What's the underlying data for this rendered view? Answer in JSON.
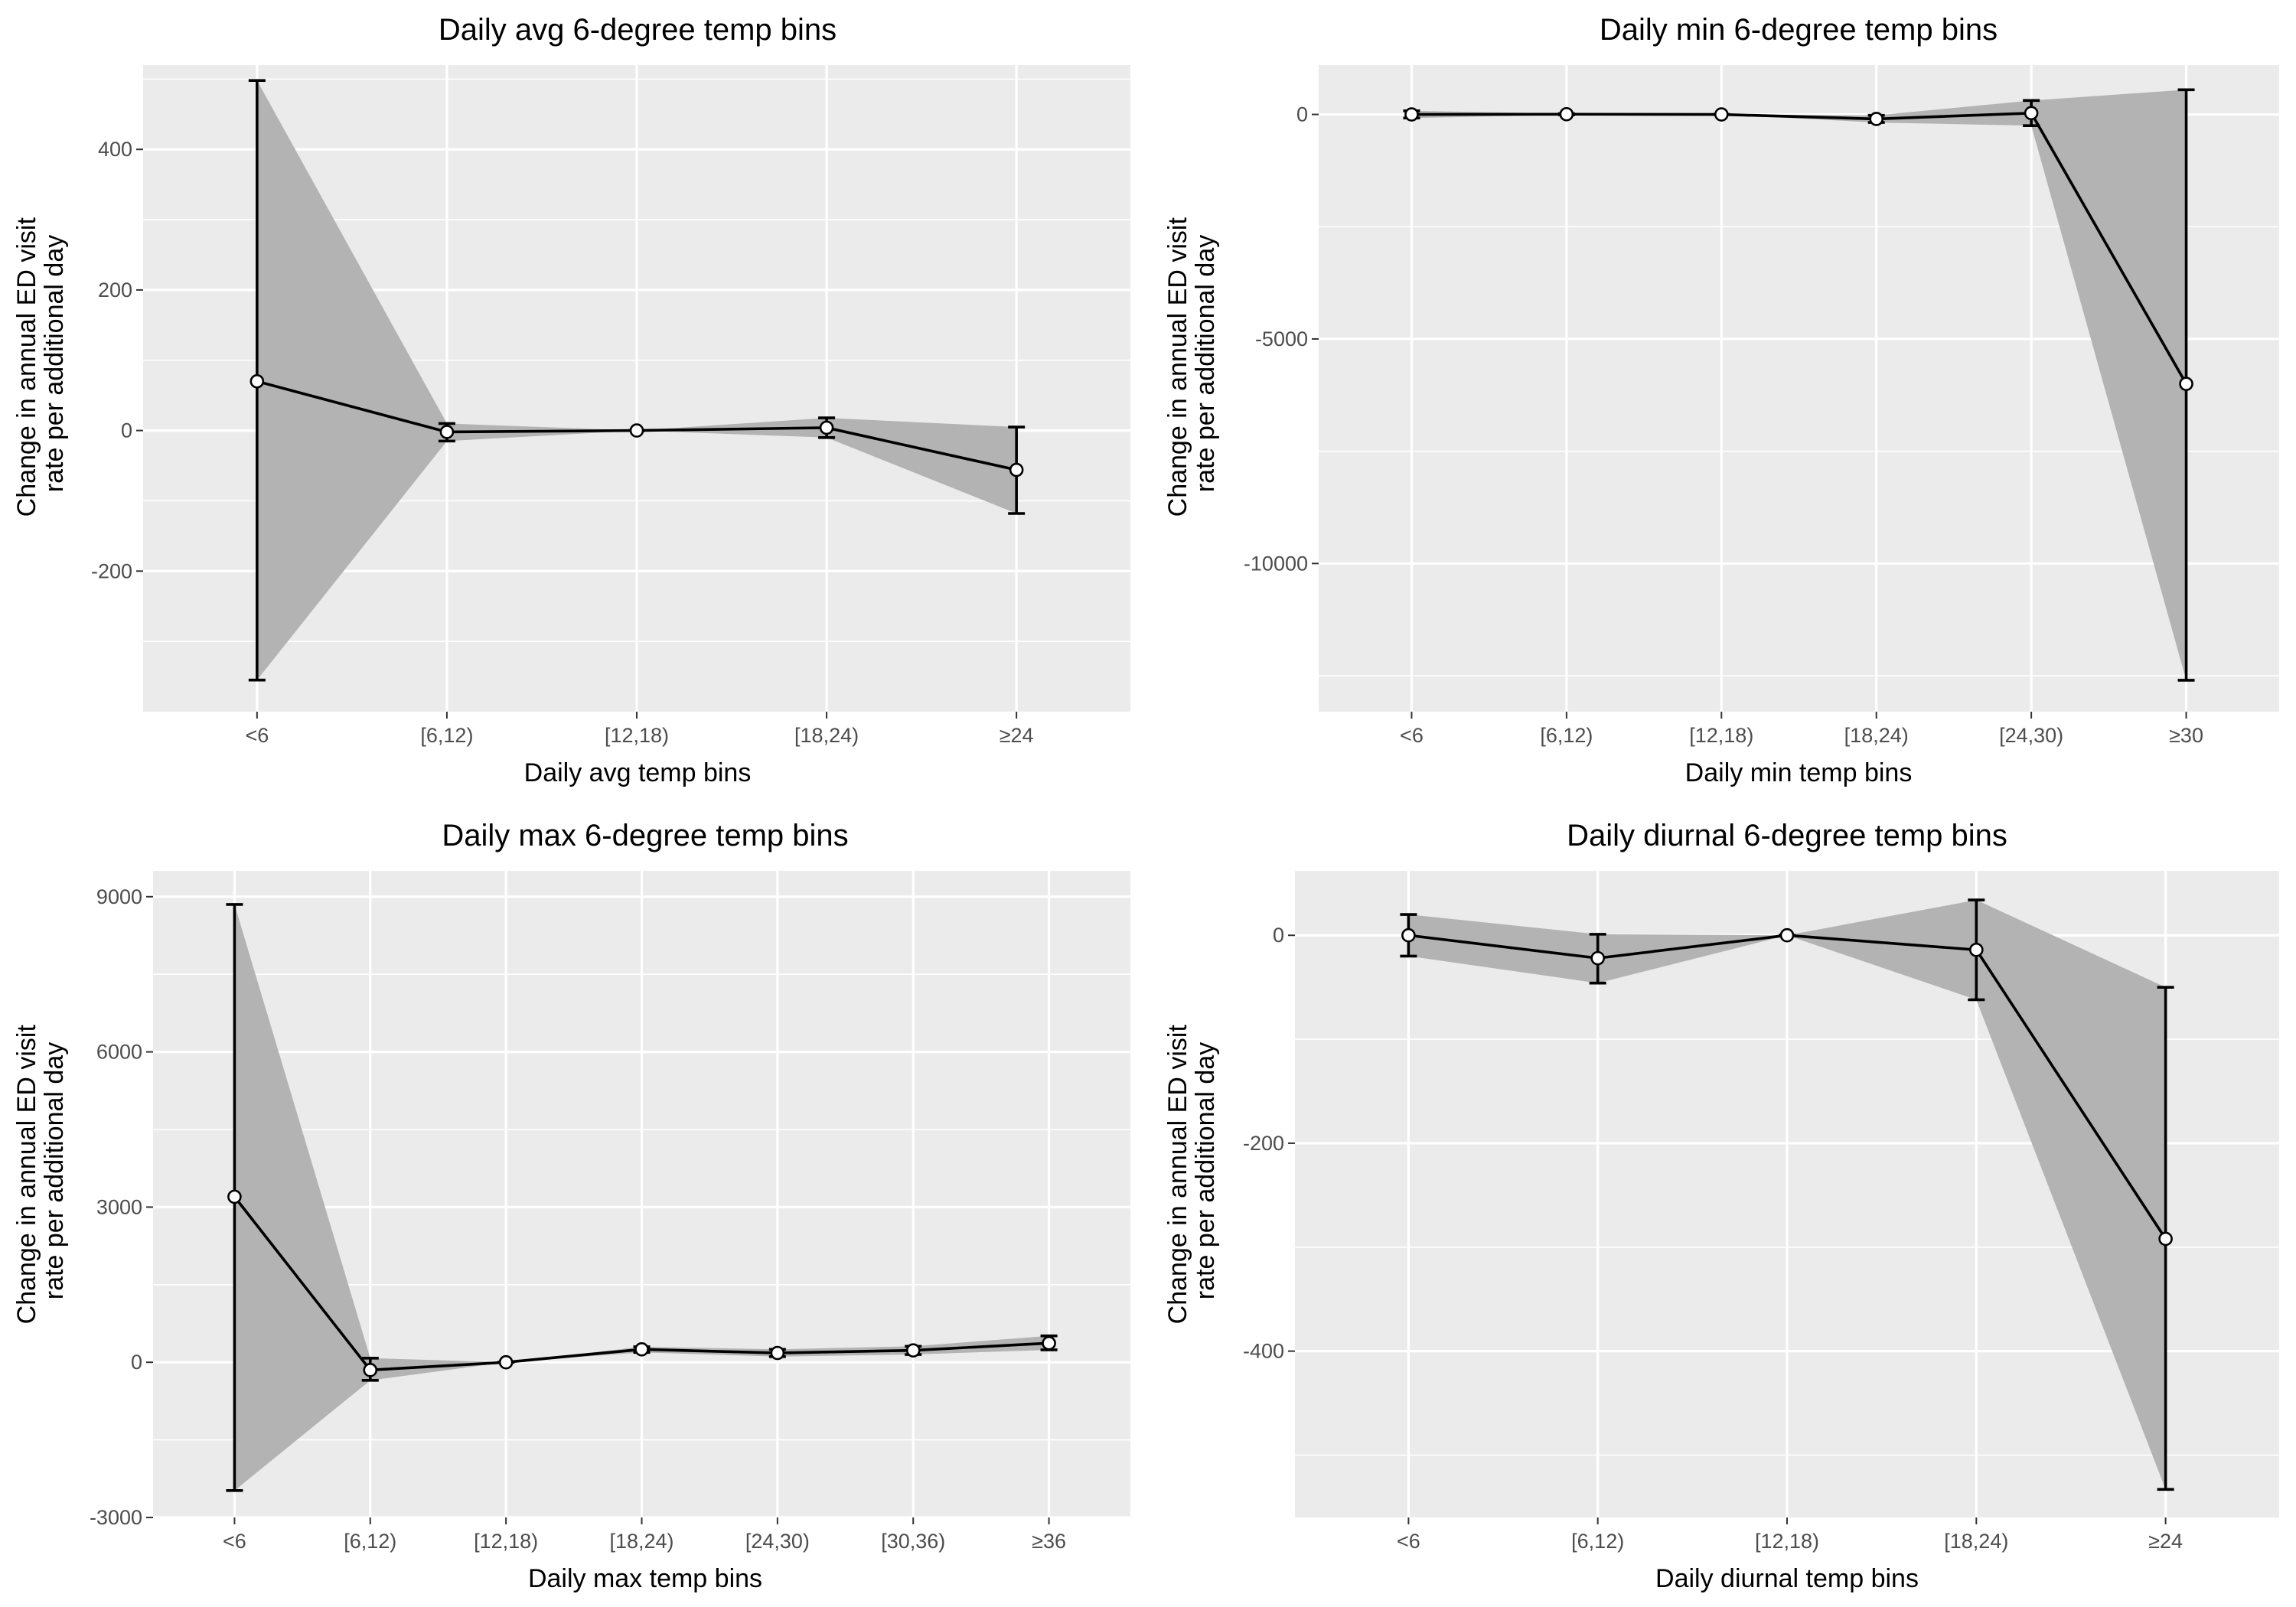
{
  "chart_data": [
    {
      "type": "line",
      "title": "Daily avg 6-degree temp bins",
      "xlabel": "Daily avg temp bins",
      "ylabel": [
        "Change in annual ED visit",
        "rate per additional day"
      ],
      "categories": [
        "<6",
        "[6,12)",
        "[12,18)",
        "[18,24)",
        "≥24"
      ],
      "values": [
        70,
        -2,
        0,
        4,
        -56
      ],
      "ci_lower": [
        -355,
        -15,
        0,
        -10,
        -118
      ],
      "ci_upper": [
        498,
        10,
        0,
        18,
        5
      ],
      "ylim": [
        -400,
        520
      ],
      "yticks": [
        -200,
        0,
        200,
        400
      ],
      "grid": true,
      "legend": "none"
    },
    {
      "type": "line",
      "title": "Daily min 6-degree temp bins",
      "xlabel": "Daily min temp bins",
      "ylabel": [
        "Change in annual ED visit",
        "rate per additional day"
      ],
      "categories": [
        "<6",
        "[6,12)",
        "[12,18)",
        "[18,24)",
        "[24,30)",
        "≥30"
      ],
      "values": [
        0,
        5,
        0,
        -100,
        30,
        -6000
      ],
      "ci_lower": [
        -80,
        -10,
        0,
        -180,
        -250,
        -12600
      ],
      "ci_upper": [
        80,
        20,
        0,
        -20,
        310,
        550
      ],
      "ylim": [
        -13300,
        1100
      ],
      "yticks": [
        -10000,
        -5000,
        0
      ],
      "grid": true,
      "legend": "none"
    },
    {
      "type": "line",
      "title": "Daily max 6-degree temp bins",
      "xlabel": "Daily max temp bins",
      "ylabel": [
        "Change in annual ED visit",
        "rate per additional day"
      ],
      "categories": [
        "<6",
        "[6,12)",
        "[12,18)",
        "[18,24)",
        "[24,30)",
        "[30,36)",
        "≥36"
      ],
      "values": [
        3200,
        -150,
        0,
        250,
        180,
        230,
        370
      ],
      "ci_lower": [
        -2480,
        -350,
        0,
        190,
        110,
        150,
        240
      ],
      "ci_upper": [
        8850,
        80,
        0,
        300,
        250,
        310,
        510
      ],
      "ylim": [
        -3000,
        9500
      ],
      "yticks": [
        -3000,
        0,
        3000,
        6000,
        9000
      ],
      "grid": true,
      "legend": "none"
    },
    {
      "type": "line",
      "title": "Daily diurnal 6-degree temp bins",
      "xlabel": "Daily diurnal temp bins",
      "ylabel": [
        "Change in annual ED visit",
        "rate per additional day"
      ],
      "categories": [
        "<6",
        "[6,12)",
        "[12,18)",
        "[18,24)",
        "≥24"
      ],
      "values": [
        0,
        -22,
        0,
        -14,
        -292
      ],
      "ci_lower": [
        -20,
        -46,
        0,
        -62,
        -533
      ],
      "ci_upper": [
        20,
        1,
        0,
        34,
        -50
      ],
      "ylim": [
        -560,
        62
      ],
      "yticks": [
        -400,
        -200,
        0
      ],
      "grid": true,
      "legend": "none"
    }
  ]
}
